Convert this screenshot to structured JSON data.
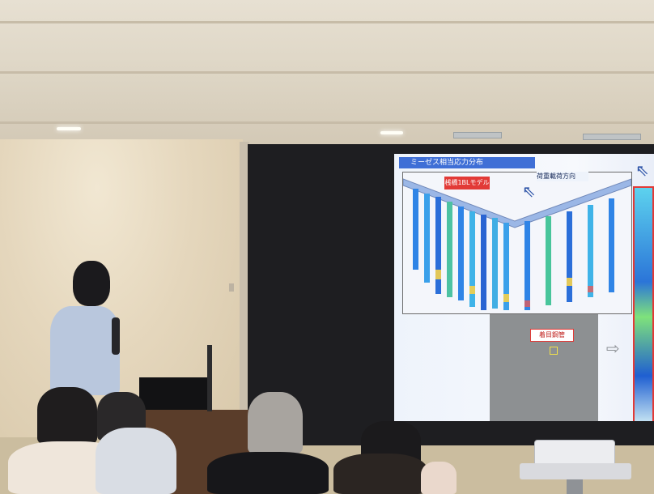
{
  "scene": {
    "description_kind": "photo",
    "colors": {
      "wall": "#e5d7bd",
      "screen_bg": "#1e1e21",
      "slide_blue": "#3f6fd6",
      "slide_red": "#e23a37"
    }
  },
  "slide": {
    "title": "ミーゼス相当応力分布",
    "model_label": "桟橋1BLモデル",
    "load_direction": "荷重載荷方向",
    "focus_pipe": "着目鋼管"
  }
}
